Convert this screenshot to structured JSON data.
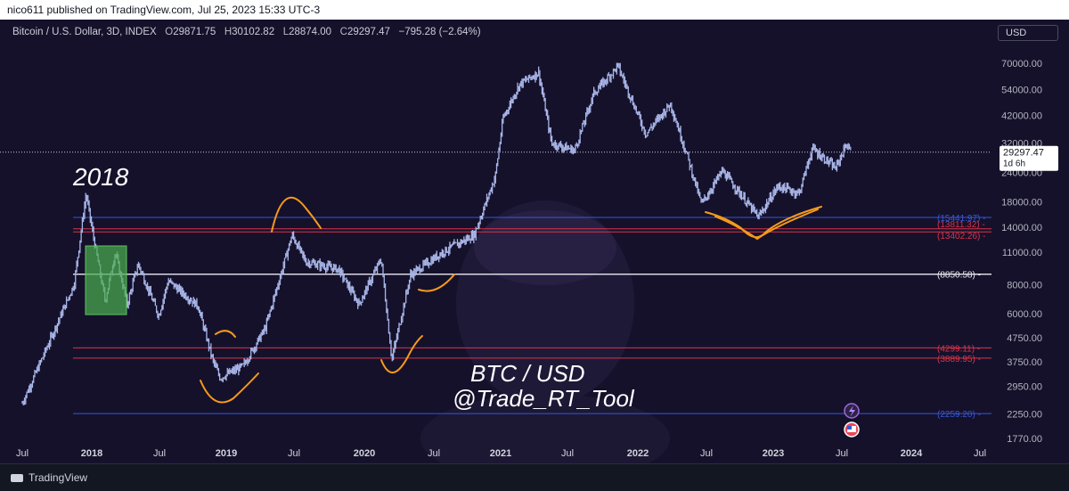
{
  "header": {
    "publish_line": "nico611 published on TradingView.com, Jul 25, 2023 15:33 UTC-3"
  },
  "legend": {
    "symbol": "Bitcoin / U.S. Dollar, 3D, INDEX",
    "open_label": "O",
    "open": "29871.75",
    "high_label": "H",
    "high": "30102.82",
    "low_label": "L",
    "low": "28874.00",
    "close_label": "C",
    "close": "29297.47",
    "change": "−795.28 (−2.64%)"
  },
  "currency_button": "USD",
  "footer": {
    "brand": "TradingView"
  },
  "colors": {
    "background": "#15112b",
    "candle": "#a9b6e8",
    "blue_line": "#3558d6",
    "red_line": "#d8344a",
    "white_line": "#ffffff",
    "drawing": "#f59a1c",
    "box": "#4caf50"
  },
  "chart_data": {
    "type": "candlestick",
    "scale": "log",
    "ylim": [
      1600,
      95000
    ],
    "y_ticks": [
      "70000.00",
      "54000.00",
      "42000.00",
      "32000.00",
      "24000.00",
      "18000.00",
      "14000.00",
      "11000.00",
      "8000.00",
      "6000.00",
      "4750.00",
      "3750.00",
      "2950.00",
      "2250.00",
      "1770.00"
    ],
    "x_ticks": [
      "Jul",
      "2018",
      "Jul",
      "2019",
      "Jul",
      "2020",
      "Jul",
      "2021",
      "Jul",
      "2022",
      "Jul",
      "2023",
      "Jul",
      "2024",
      "Jul"
    ],
    "x_tick_dates": [
      "2017-07-01",
      "2018-01-01",
      "2018-07-01",
      "2019-01-01",
      "2019-07-01",
      "2020-01-01",
      "2020-07-01",
      "2021-01-01",
      "2021-07-01",
      "2022-01-01",
      "2022-07-01",
      "2023-01-01",
      "2023-07-01",
      "2024-01-01",
      "2024-07-01"
    ],
    "price_path": [
      [
        "2017-07-01",
        2500
      ],
      [
        "2017-09-01",
        4200
      ],
      [
        "2017-11-15",
        8000
      ],
      [
        "2017-12-17",
        19500
      ],
      [
        "2018-01-01",
        14000
      ],
      [
        "2018-02-06",
        6800
      ],
      [
        "2018-03-05",
        11000
      ],
      [
        "2018-04-06",
        6600
      ],
      [
        "2018-05-05",
        9800
      ],
      [
        "2018-06-29",
        5900
      ],
      [
        "2018-07-25",
        8300
      ],
      [
        "2018-10-15",
        6500
      ],
      [
        "2018-11-25",
        3800
      ],
      [
        "2018-12-15",
        3200
      ],
      [
        "2019-02-15",
        3600
      ],
      [
        "2019-04-15",
        5200
      ],
      [
        "2019-06-26",
        13000
      ],
      [
        "2019-08-01",
        10000
      ],
      [
        "2019-10-25",
        9300
      ],
      [
        "2019-12-18",
        6600
      ],
      [
        "2020-02-14",
        10300
      ],
      [
        "2020-03-13",
        3850
      ],
      [
        "2020-05-01",
        8800
      ],
      [
        "2020-07-25",
        11000
      ],
      [
        "2020-10-20",
        13000
      ],
      [
        "2020-12-17",
        23000
      ],
      [
        "2021-01-08",
        41000
      ],
      [
        "2021-02-21",
        57000
      ],
      [
        "2021-04-14",
        64000
      ],
      [
        "2021-05-19",
        32000
      ],
      [
        "2021-07-20",
        29800
      ],
      [
        "2021-09-07",
        52000
      ],
      [
        "2021-11-10",
        68000
      ],
      [
        "2022-01-22",
        35000
      ],
      [
        "2022-03-28",
        47000
      ],
      [
        "2022-05-12",
        28000
      ],
      [
        "2022-06-18",
        17600
      ],
      [
        "2022-08-14",
        24400
      ],
      [
        "2022-11-21",
        15500
      ],
      [
        "2023-01-14",
        21000
      ],
      [
        "2023-03-10",
        19600
      ],
      [
        "2023-04-14",
        30400
      ],
      [
        "2023-06-15",
        25000
      ],
      [
        "2023-07-13",
        31800
      ],
      [
        "2023-07-25",
        29297.47
      ]
    ],
    "horizontal_levels": [
      {
        "label": "(15441.97)",
        "value": 15441.97,
        "color": "#3558d6"
      },
      {
        "label": "(13811.32)",
        "value": 13811.32,
        "color": "#d8344a"
      },
      {
        "label": "(13402.26)",
        "value": 13402.26,
        "color": "#d8344a"
      },
      {
        "label": "(8850.58)",
        "value": 8850.58,
        "color": "#ffffff"
      },
      {
        "label": "(4299.11)",
        "value": 4299.11,
        "color": "#d8344a"
      },
      {
        "label": "(3889.95)",
        "value": 3889.95,
        "color": "#d8344a"
      },
      {
        "label": "(2259.20)",
        "value": 2259.2,
        "color": "#3558d6"
      }
    ],
    "last_price": "29297.47",
    "countdown": "1d 6h",
    "annotations": {
      "year_label": "2018",
      "title_line1": "BTC / USD",
      "title_line2": "@Trade_RT_Tool"
    }
  }
}
